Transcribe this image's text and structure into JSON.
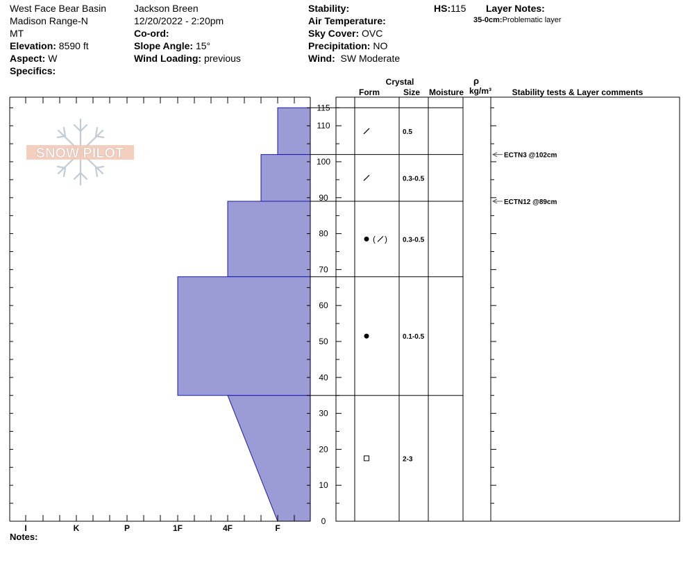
{
  "header": {
    "location": "West Face Bear Basin",
    "range": "Madison Range-N",
    "state": "MT",
    "elevation_label": "Elevation:",
    "elevation_value": "8590 ft",
    "aspect_label": "Aspect:",
    "aspect_value": "W",
    "specifics_label": "Specifics:",
    "observer": "Jackson Breen",
    "datetime": "12/20/2022 - 2:20pm",
    "coord_label": "Co-ord:",
    "slope_label": "Slope Angle:",
    "slope_value": "15°",
    "wind_loading_label": "Wind Loading:",
    "wind_loading_value": "previous",
    "stability_label": "Stability:",
    "air_temp_label": "Air Temperature:",
    "sky_label": "Sky Cover:",
    "sky_value": "OVC",
    "precip_label": "Precipitation:",
    "precip_value": "NO",
    "wind_label": "Wind:",
    "wind_value": "SW Moderate",
    "hs_label": "HS:",
    "hs_value": "115",
    "layer_notes_label": "Layer Notes:",
    "layer_note_range": "35-0cm:",
    "layer_note_text": "Problematic layer"
  },
  "notes_label": "Notes:",
  "logo_text": "SNOW PILOT",
  "columns": {
    "crystal": "Crystal",
    "form": "Form",
    "size": "Size",
    "moisture": "Moisture",
    "rho": "ρ",
    "density_unit": "kg/m³",
    "stability": "Stability tests & Layer comments"
  },
  "colors": {
    "hardness_fill": "#9b9bd6",
    "hardness_stroke": "#1a1aa6"
  },
  "chart_data": {
    "type": "area",
    "description_axis": "hardness profile vs height",
    "hardness_categories": [
      "I",
      "K",
      "P",
      "1F",
      "4F",
      "F"
    ],
    "height_ticks": [
      0,
      10,
      20,
      30,
      40,
      50,
      60,
      70,
      80,
      90,
      100,
      110,
      115
    ],
    "ylim": [
      0,
      115
    ],
    "hardness_profile": [
      {
        "top": 115,
        "bottom": 102,
        "hardness_top": "F",
        "hardness_bottom": "F"
      },
      {
        "top": 102,
        "bottom": 89,
        "hardness_top": "4F+",
        "hardness_bottom": "4F+"
      },
      {
        "top": 89,
        "bottom": 68,
        "hardness_top": "4F",
        "hardness_bottom": "4F"
      },
      {
        "top": 68,
        "bottom": 35,
        "hardness_top": "1F",
        "hardness_bottom": "1F"
      },
      {
        "top": 35,
        "bottom": 0,
        "hardness_top": "4F",
        "hardness_bottom": "F"
      }
    ],
    "layers": [
      {
        "top": 115,
        "bottom": 102,
        "form": "decomposing",
        "size": "0.5"
      },
      {
        "top": 102,
        "bottom": 89,
        "form": "decomposing",
        "size": "0.3-0.5"
      },
      {
        "top": 89,
        "bottom": 68,
        "form": "rounded",
        "secondary_form": "decomposing",
        "size": "0.3-0.5"
      },
      {
        "top": 68,
        "bottom": 35,
        "form": "rounded",
        "size": "0.1-0.5"
      },
      {
        "top": 35,
        "bottom": 0,
        "form": "faceted",
        "size": "2-3"
      }
    ],
    "stability_tests": [
      {
        "height": 102,
        "label": "ECTN3 @102cm"
      },
      {
        "height": 89,
        "label": "ECTN12 @89cm"
      }
    ]
  }
}
